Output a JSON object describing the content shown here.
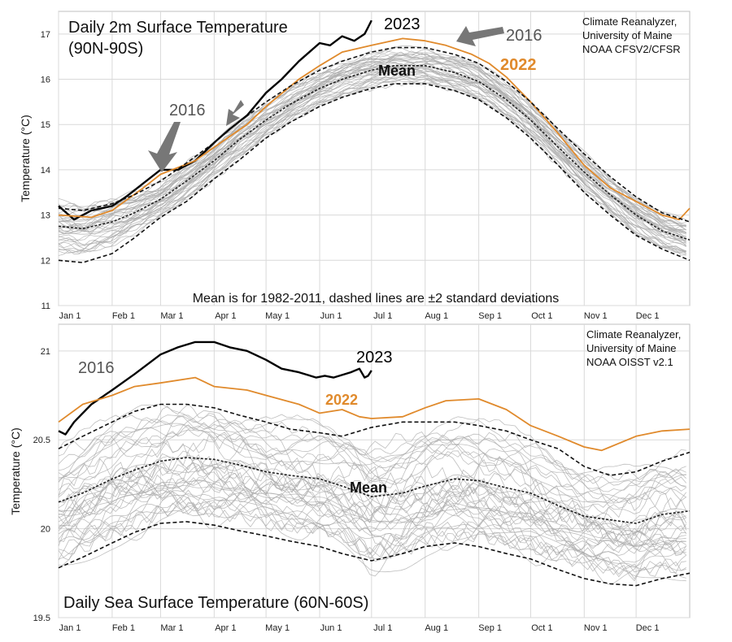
{
  "colors": {
    "background": "#ffffff",
    "grid": "#d9d9d9",
    "ensemble": "#a9a9a9",
    "mean": "#222222",
    "y2023": "#000000",
    "y2022": "#e08a2c",
    "arrow": "#777777",
    "label2016": "#555555"
  },
  "chart_data": [
    {
      "type": "line",
      "title": "Daily 2m Surface Temperature",
      "subtitle": "(90N-90S)",
      "ylabel": "Temperature (°C)",
      "ylim": [
        11,
        17.5
      ],
      "yticks": [
        11,
        12,
        13,
        14,
        15,
        16,
        17
      ],
      "xlim": [
        1,
        366
      ],
      "month_ticks": [
        {
          "label": "Jan 1",
          "day": 1
        },
        {
          "label": "Feb 1",
          "day": 32
        },
        {
          "label": "Mar 1",
          "day": 60
        },
        {
          "label": "Apr 1",
          "day": 91
        },
        {
          "label": "May 1",
          "day": 121
        },
        {
          "label": "Jun 1",
          "day": 152
        },
        {
          "label": "Jul 1",
          "day": 182
        },
        {
          "label": "Aug 1",
          "day": 213
        },
        {
          "label": "Sep 1",
          "day": 244
        },
        {
          "label": "Oct 1",
          "day": 274
        },
        {
          "label": "Nov 1",
          "day": 305
        },
        {
          "label": "Dec 1",
          "day": 335
        }
      ],
      "grid": true,
      "source": [
        "Climate Reanalyzer,",
        "University of Maine",
        "NOAA CFSV2/CFSR"
      ],
      "note": "Mean is for 1982-2011, dashed lines are ±2 standard deviations",
      "labels": {
        "y2023": "2023",
        "y2022": "2022",
        "mean": "Mean",
        "y2016a": "2016",
        "y2016b": "2016"
      },
      "series": [
        {
          "name": "2023",
          "x": [
            1,
            10,
            20,
            32,
            40,
            50,
            60,
            70,
            80,
            91,
            100,
            110,
            121,
            130,
            140,
            152,
            158,
            165,
            172,
            178,
            180,
            182
          ],
          "y": [
            13.2,
            12.9,
            13.1,
            13.2,
            13.4,
            13.7,
            14.0,
            14.0,
            14.2,
            14.6,
            14.9,
            15.2,
            15.7,
            16.0,
            16.4,
            16.8,
            16.75,
            16.95,
            16.85,
            17.0,
            17.15,
            17.3
          ]
        },
        {
          "name": "2022",
          "x": [
            1,
            20,
            32,
            50,
            60,
            80,
            91,
            110,
            121,
            140,
            152,
            165,
            182,
            200,
            213,
            225,
            240,
            250,
            260,
            274,
            290,
            305,
            320,
            335,
            350,
            360,
            366
          ],
          "y": [
            13.0,
            12.95,
            13.1,
            13.6,
            13.9,
            14.2,
            14.5,
            15.0,
            15.4,
            16.0,
            16.3,
            16.6,
            16.75,
            16.9,
            16.85,
            16.75,
            16.55,
            16.35,
            16.05,
            15.5,
            14.8,
            14.1,
            13.6,
            13.3,
            13.0,
            12.9,
            13.15
          ]
        },
        {
          "name": "Mean",
          "x": [
            1,
            15,
            32,
            45,
            60,
            75,
            91,
            105,
            121,
            135,
            152,
            165,
            182,
            195,
            213,
            230,
            244,
            260,
            274,
            290,
            305,
            320,
            335,
            350,
            366
          ],
          "y": [
            12.75,
            12.7,
            12.85,
            13.05,
            13.35,
            13.75,
            14.2,
            14.65,
            15.1,
            15.45,
            15.8,
            16.0,
            16.2,
            16.3,
            16.3,
            16.15,
            15.95,
            15.55,
            15.1,
            14.5,
            13.95,
            13.45,
            13.0,
            12.65,
            12.45
          ]
        },
        {
          "name": "+2σ",
          "x": [
            1,
            15,
            32,
            45,
            60,
            75,
            91,
            105,
            121,
            135,
            152,
            165,
            182,
            195,
            213,
            230,
            244,
            260,
            274,
            290,
            305,
            320,
            335,
            350,
            366
          ],
          "y": [
            13.15,
            13.1,
            13.25,
            13.45,
            13.75,
            14.15,
            14.6,
            15.05,
            15.5,
            15.85,
            16.2,
            16.4,
            16.6,
            16.7,
            16.7,
            16.55,
            16.35,
            15.95,
            15.5,
            14.9,
            14.35,
            13.85,
            13.4,
            13.05,
            12.85
          ]
        },
        {
          "name": "-2σ",
          "x": [
            1,
            15,
            32,
            45,
            60,
            75,
            91,
            105,
            121,
            135,
            152,
            165,
            182,
            195,
            213,
            230,
            244,
            260,
            274,
            290,
            305,
            320,
            335,
            350,
            366
          ],
          "y": [
            12.0,
            11.95,
            12.15,
            12.5,
            12.95,
            13.3,
            13.8,
            14.2,
            14.7,
            15.05,
            15.4,
            15.6,
            15.8,
            15.9,
            15.9,
            15.75,
            15.55,
            15.15,
            14.7,
            14.1,
            13.5,
            13.0,
            12.55,
            12.25,
            12.0
          ]
        }
      ]
    },
    {
      "type": "line",
      "title": "Daily Sea Surface Temperature (60N-60S)",
      "ylabel": "Temperature (°C)",
      "ylim": [
        19.5,
        21.15
      ],
      "yticks": [
        19.5,
        20,
        20.5,
        21
      ],
      "xlim": [
        1,
        366
      ],
      "month_ticks": [
        {
          "label": "Jan 1",
          "day": 1
        },
        {
          "label": "Feb 1",
          "day": 32
        },
        {
          "label": "Mar 1",
          "day": 60
        },
        {
          "label": "Apr 1",
          "day": 91
        },
        {
          "label": "May 1",
          "day": 121
        },
        {
          "label": "Jun 1",
          "day": 152
        },
        {
          "label": "Jul 1",
          "day": 182
        },
        {
          "label": "Aug 1",
          "day": 213
        },
        {
          "label": "Sep 1",
          "day": 244
        },
        {
          "label": "Oct 1",
          "day": 274
        },
        {
          "label": "Nov 1",
          "day": 305
        },
        {
          "label": "Dec 1",
          "day": 335
        }
      ],
      "grid": true,
      "source": [
        "Climate Reanalyzer,",
        "University of Maine",
        "NOAA OISST v2.1"
      ],
      "labels": {
        "y2023": "2023",
        "y2022": "2022",
        "mean": "Mean",
        "y2016": "2016"
      },
      "series": [
        {
          "name": "2023",
          "x": [
            1,
            5,
            10,
            20,
            32,
            45,
            60,
            70,
            80,
            91,
            100,
            110,
            121,
            130,
            140,
            150,
            155,
            160,
            170,
            175,
            178,
            180,
            182
          ],
          "y": [
            20.55,
            20.53,
            20.6,
            20.7,
            20.78,
            20.87,
            20.98,
            21.02,
            21.05,
            21.05,
            21.02,
            21.0,
            20.95,
            20.9,
            20.88,
            20.85,
            20.86,
            20.85,
            20.88,
            20.9,
            20.85,
            20.86,
            20.89
          ]
        },
        {
          "name": "2022",
          "x": [
            1,
            15,
            32,
            45,
            60,
            80,
            91,
            110,
            121,
            140,
            152,
            165,
            175,
            182,
            200,
            213,
            225,
            244,
            260,
            274,
            290,
            305,
            315,
            320,
            335,
            350,
            366
          ],
          "y": [
            20.6,
            20.7,
            20.75,
            20.8,
            20.82,
            20.85,
            20.8,
            20.78,
            20.75,
            20.7,
            20.65,
            20.67,
            20.63,
            20.62,
            20.63,
            20.68,
            20.72,
            20.73,
            20.67,
            20.58,
            20.52,
            20.46,
            20.44,
            20.46,
            20.52,
            20.55,
            20.56
          ]
        },
        {
          "name": "Mean",
          "x": [
            1,
            15,
            32,
            45,
            60,
            75,
            91,
            105,
            121,
            135,
            152,
            165,
            182,
            200,
            213,
            230,
            244,
            260,
            274,
            290,
            305,
            320,
            335,
            350,
            366
          ],
          "y": [
            20.15,
            20.2,
            20.28,
            20.33,
            20.38,
            20.4,
            20.39,
            20.36,
            20.32,
            20.3,
            20.28,
            20.24,
            20.18,
            20.2,
            20.24,
            20.28,
            20.27,
            20.23,
            20.2,
            20.13,
            20.07,
            20.05,
            20.03,
            20.08,
            20.1
          ]
        },
        {
          "name": "+2σ",
          "x": [
            1,
            15,
            32,
            45,
            60,
            75,
            91,
            105,
            121,
            135,
            152,
            165,
            182,
            200,
            213,
            230,
            244,
            260,
            274,
            290,
            305,
            320,
            335,
            350,
            366
          ],
          "y": [
            20.45,
            20.52,
            20.6,
            20.66,
            20.7,
            20.7,
            20.68,
            20.64,
            20.6,
            20.56,
            20.54,
            20.52,
            20.57,
            20.6,
            20.6,
            20.6,
            20.58,
            20.55,
            20.5,
            20.45,
            20.35,
            20.3,
            20.32,
            20.38,
            20.43
          ]
        },
        {
          "name": "-2σ",
          "x": [
            1,
            15,
            32,
            45,
            60,
            75,
            91,
            105,
            121,
            135,
            152,
            165,
            182,
            200,
            213,
            230,
            244,
            260,
            274,
            290,
            305,
            320,
            335,
            350,
            366
          ],
          "y": [
            19.78,
            19.84,
            19.92,
            19.98,
            20.03,
            20.04,
            20.02,
            19.99,
            19.96,
            19.93,
            19.9,
            19.86,
            19.82,
            19.86,
            19.9,
            19.92,
            19.9,
            19.86,
            19.83,
            19.77,
            19.72,
            19.69,
            19.68,
            19.72,
            19.75
          ]
        }
      ]
    }
  ]
}
